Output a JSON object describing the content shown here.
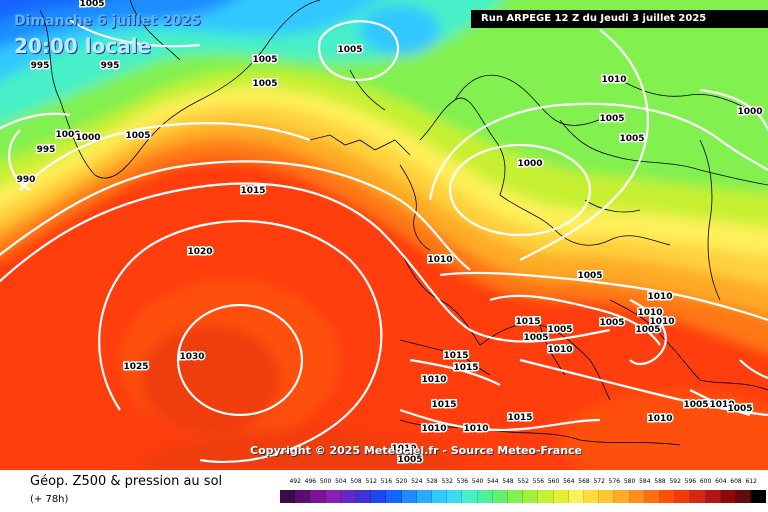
{
  "header": {
    "date": "Dimanche 6 juillet 2025",
    "time": "20:00 locale",
    "run": "Run ARPEGE 12 Z du Jeudi 3 juillet 2025"
  },
  "copyright": "Copyright © 2025 Meteociel.fr - Source Meteo-France",
  "footer": {
    "title": "Géop. Z500 & pression au sol",
    "subtitle": "(+ 78h)"
  },
  "scale": {
    "values": [
      492,
      496,
      500,
      504,
      508,
      512,
      516,
      520,
      524,
      528,
      532,
      536,
      540,
      544,
      548,
      552,
      556,
      560,
      564,
      568,
      572,
      576,
      580,
      584,
      588,
      592,
      596,
      600,
      604,
      608,
      612
    ],
    "colors": [
      "#3c0a4a",
      "#5a0f6e",
      "#7a1496",
      "#8c1eb4",
      "#6428c8",
      "#3c32dc",
      "#1e46f0",
      "#1464ff",
      "#1e8cff",
      "#28aaff",
      "#32c8ff",
      "#3cdcf0",
      "#46f0c8",
      "#50f09a",
      "#64f06e",
      "#82f050",
      "#a0f03c",
      "#c8f032",
      "#e6f032",
      "#fff05a",
      "#ffdc3c",
      "#ffc832",
      "#ffaa28",
      "#ff8c1e",
      "#ff6e14",
      "#ff500a",
      "#f03c0a",
      "#d22814",
      "#b41414",
      "#8c0a0a",
      "#640a0a",
      "#000000"
    ]
  },
  "pressure_labels": [
    {
      "text": "995"
    },
    {
      "text": "995"
    },
    {
      "text": "1000"
    },
    {
      "text": "1000"
    },
    {
      "text": "995"
    },
    {
      "text": "990"
    },
    {
      "text": "1005"
    },
    {
      "text": "1005"
    },
    {
      "text": "1005"
    },
    {
      "text": "1005"
    },
    {
      "text": "1005"
    },
    {
      "text": "1015"
    },
    {
      "text": "1020"
    },
    {
      "text": "1030"
    },
    {
      "text": "1025"
    },
    {
      "text": "1010"
    },
    {
      "text": "1000"
    },
    {
      "text": "1005"
    },
    {
      "text": "1005"
    },
    {
      "text": "1010"
    },
    {
      "text": "1000"
    },
    {
      "text": "1005"
    },
    {
      "text": "1015"
    },
    {
      "text": "1005"
    },
    {
      "text": "1005"
    },
    {
      "text": "1010"
    },
    {
      "text": "1005"
    },
    {
      "text": "1010"
    },
    {
      "text": "1010"
    },
    {
      "text": "1010"
    },
    {
      "text": "1005"
    },
    {
      "text": "1015"
    },
    {
      "text": "1015"
    },
    {
      "text": "1010"
    },
    {
      "text": "1015"
    },
    {
      "text": "1010"
    },
    {
      "text": "1010"
    },
    {
      "text": "1015"
    },
    {
      "text": "1010"
    },
    {
      "text": "1005"
    },
    {
      "text": "1010"
    },
    {
      "text": "1010"
    },
    {
      "text": "1005"
    },
    {
      "text": "1005"
    }
  ]
}
